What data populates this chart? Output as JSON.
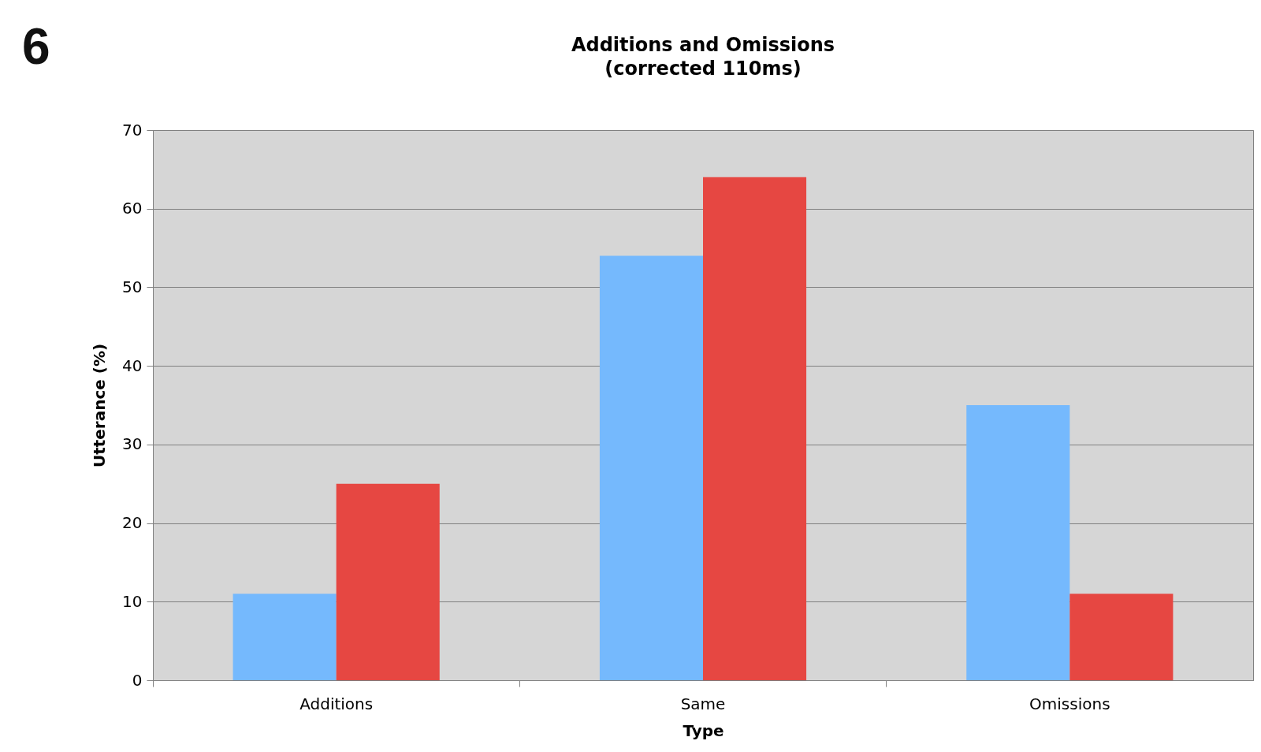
{
  "chart_data": {
    "type": "bar",
    "title": "Additions and Omissions",
    "subtitle": "(corrected 110ms)",
    "xlabel": "Type",
    "ylabel": "Utterance (%)",
    "annotations": [
      "6"
    ],
    "categories": [
      "Additions",
      "Same",
      "Omissions"
    ],
    "series": [
      {
        "color": "#75b9fd",
        "values": [
          11,
          54,
          35
        ]
      },
      {
        "color": "#e64742",
        "values": [
          25,
          64,
          11
        ]
      }
    ],
    "ylim": [
      0,
      70
    ],
    "yticks": [
      0,
      10,
      20,
      30,
      40,
      50,
      60,
      70
    ],
    "grid": "y"
  }
}
